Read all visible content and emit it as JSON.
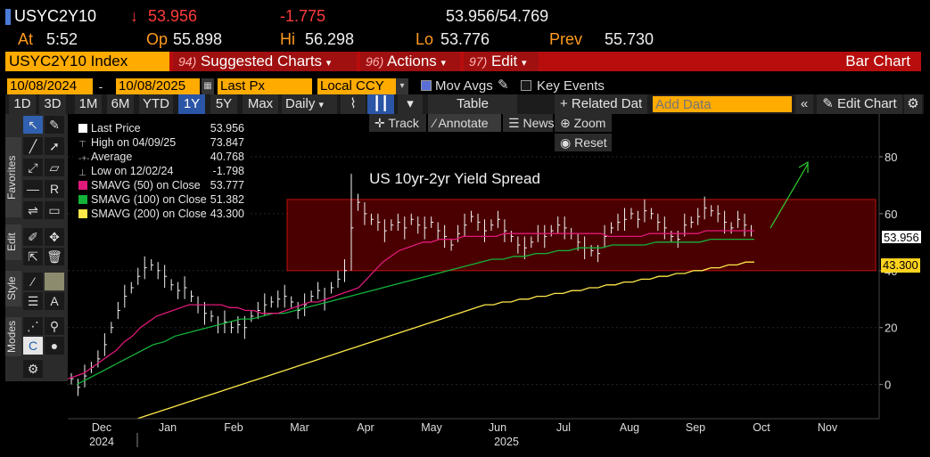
{
  "quote": {
    "ticker": "USYC2Y10",
    "arrow": "↓",
    "last": "53.956",
    "change": "-1.775",
    "bid_ask": "53.956/54.769",
    "time_label": "At",
    "time": "5:52",
    "open_label": "Op",
    "open": "55.898",
    "high_label": "Hi",
    "high": "56.298",
    "low_label": "Lo",
    "low": "53.776",
    "prev_label": "Prev",
    "prev": "55.730"
  },
  "menubar": {
    "ticker_box": "USYC2Y10 Index",
    "suggested_num": "94)",
    "suggested": "Suggested Charts",
    "actions_num": "96)",
    "actions": "Actions",
    "edit_num": "97)",
    "edit": "Edit",
    "chart_type": "Bar Chart"
  },
  "controls": {
    "start_date": "10/08/2024",
    "end_date": "10/08/2025",
    "field": "Last Px",
    "currency": "Local CCY",
    "mov_avgs": "Mov Avgs",
    "key_events": "Key Events"
  },
  "timeframes": [
    "1D",
    "3D",
    "1M",
    "6M",
    "YTD",
    "1Y",
    "5Y",
    "Max"
  ],
  "active_timeframe": "1Y",
  "toolbar": {
    "period": "Daily",
    "table": "Table",
    "related": "+ Related Dat",
    "add_data_placeholder": "Add Data",
    "edit_chart": "Edit Chart",
    "track": "Track",
    "annotate": "Annotate",
    "news": "News",
    "zoom": "Zoom",
    "reset": "Reset"
  },
  "tools_tabs": [
    "Favorites",
    "Edit",
    "Style",
    "Modes"
  ],
  "legend": [
    {
      "label": "Last Price",
      "value": "53.956",
      "color": "#ffffff"
    },
    {
      "label": "High on 04/09/25",
      "value": "73.847",
      "color": "#aaaaaa"
    },
    {
      "label": "Average",
      "value": "40.768",
      "color": "#aaaaaa"
    },
    {
      "label": "Low on 12/02/24",
      "value": "-1.798",
      "color": "#aaaaaa"
    },
    {
      "label": "SMAVG (50)  on Close",
      "value": "53.777",
      "color": "#e0197a"
    },
    {
      "label": "SMAVG (100)  on Close",
      "value": "51.382",
      "color": "#13b33a"
    },
    {
      "label": "SMAVG (200)  on Close",
      "value": "43.300",
      "color": "#ffe84a"
    }
  ],
  "chart_data": {
    "type": "bar",
    "title": "US 10yr-2yr Yield Spread",
    "y_ticks": [
      "80",
      "60",
      "40",
      "20",
      "0"
    ],
    "ylim": [
      -12,
      95
    ],
    "x_ticks": [
      "Dec",
      "Jan",
      "Feb",
      "Mar",
      "Apr",
      "May",
      "Jun",
      "Jul",
      "Aug",
      "Sep",
      "Oct",
      "Nov"
    ],
    "x_year_labels": [
      "2024",
      "2025"
    ],
    "last_price_tag": "53.956",
    "sma200_tag": "43.300",
    "range_box": [
      40,
      65
    ],
    "price_series": [
      2,
      -1,
      3,
      6,
      9,
      14,
      20,
      26,
      31,
      34,
      38,
      41,
      42,
      40,
      38,
      35,
      33,
      34,
      31,
      28,
      25,
      24,
      21,
      22,
      20,
      21,
      20,
      24,
      26,
      28,
      29,
      30,
      31,
      29,
      26,
      28,
      31,
      33,
      30,
      34,
      37,
      40,
      55,
      64,
      60,
      58,
      57,
      54,
      56,
      57,
      55,
      58,
      56,
      55,
      57,
      54,
      52,
      49,
      53,
      56,
      59,
      57,
      54,
      56,
      58,
      54,
      52,
      49,
      48,
      50,
      53,
      52,
      54,
      56,
      55,
      53,
      50,
      48,
      47,
      46,
      52,
      55,
      57,
      58,
      60,
      58,
      61,
      60,
      57,
      55,
      52,
      51,
      56,
      57,
      59,
      62,
      61,
      60,
      57,
      55,
      58,
      56,
      54
    ],
    "sma50": [
      2,
      3,
      4,
      6,
      8,
      10,
      12,
      15,
      17,
      20,
      22,
      24,
      25,
      26,
      27,
      28,
      28,
      28,
      28,
      28,
      27,
      27,
      26,
      26,
      25,
      25,
      25,
      26,
      27,
      28,
      29,
      29,
      30,
      31,
      32,
      33,
      34,
      37,
      40,
      43,
      45,
      47,
      48,
      49,
      50,
      50,
      51,
      51,
      51,
      52,
      52,
      52,
      52,
      52,
      53,
      53,
      53,
      53,
      53,
      53,
      53,
      53,
      53,
      53,
      53,
      53,
      53,
      52,
      52,
      52,
      52,
      52,
      53,
      53,
      53,
      53,
      53,
      53,
      53,
      54,
      54,
      54,
      54,
      54,
      54,
      54
    ],
    "sma100": [
      0,
      2,
      4,
      6,
      8,
      10,
      12,
      14,
      15,
      17,
      18,
      19,
      20,
      21,
      22,
      23,
      23,
      24,
      25,
      25,
      26,
      27,
      28,
      29,
      30,
      31,
      32,
      33,
      34,
      35,
      36,
      37,
      38,
      39,
      40,
      41,
      42,
      43,
      44,
      44,
      45,
      45,
      46,
      46,
      47,
      47,
      48,
      48,
      48,
      49,
      49,
      49,
      49,
      50,
      50,
      50,
      50,
      50,
      51,
      51,
      51,
      51,
      51
    ],
    "sma200": [
      -12,
      -11,
      -10,
      -9,
      -8,
      -7,
      -6,
      -5,
      -4,
      -3,
      -2,
      -1,
      0,
      1,
      2,
      3,
      4,
      5,
      6,
      7,
      8,
      9,
      10,
      11,
      12,
      13,
      14,
      15,
      16,
      17,
      18,
      19,
      20,
      21,
      22,
      23,
      24,
      25,
      26,
      27,
      28,
      28,
      29,
      29,
      30,
      30,
      31,
      31,
      32,
      32,
      33,
      33,
      34,
      34,
      35,
      35,
      36,
      36,
      37,
      37,
      38,
      38,
      39,
      39,
      40,
      40,
      41,
      41,
      42,
      42,
      43,
      43
    ]
  }
}
